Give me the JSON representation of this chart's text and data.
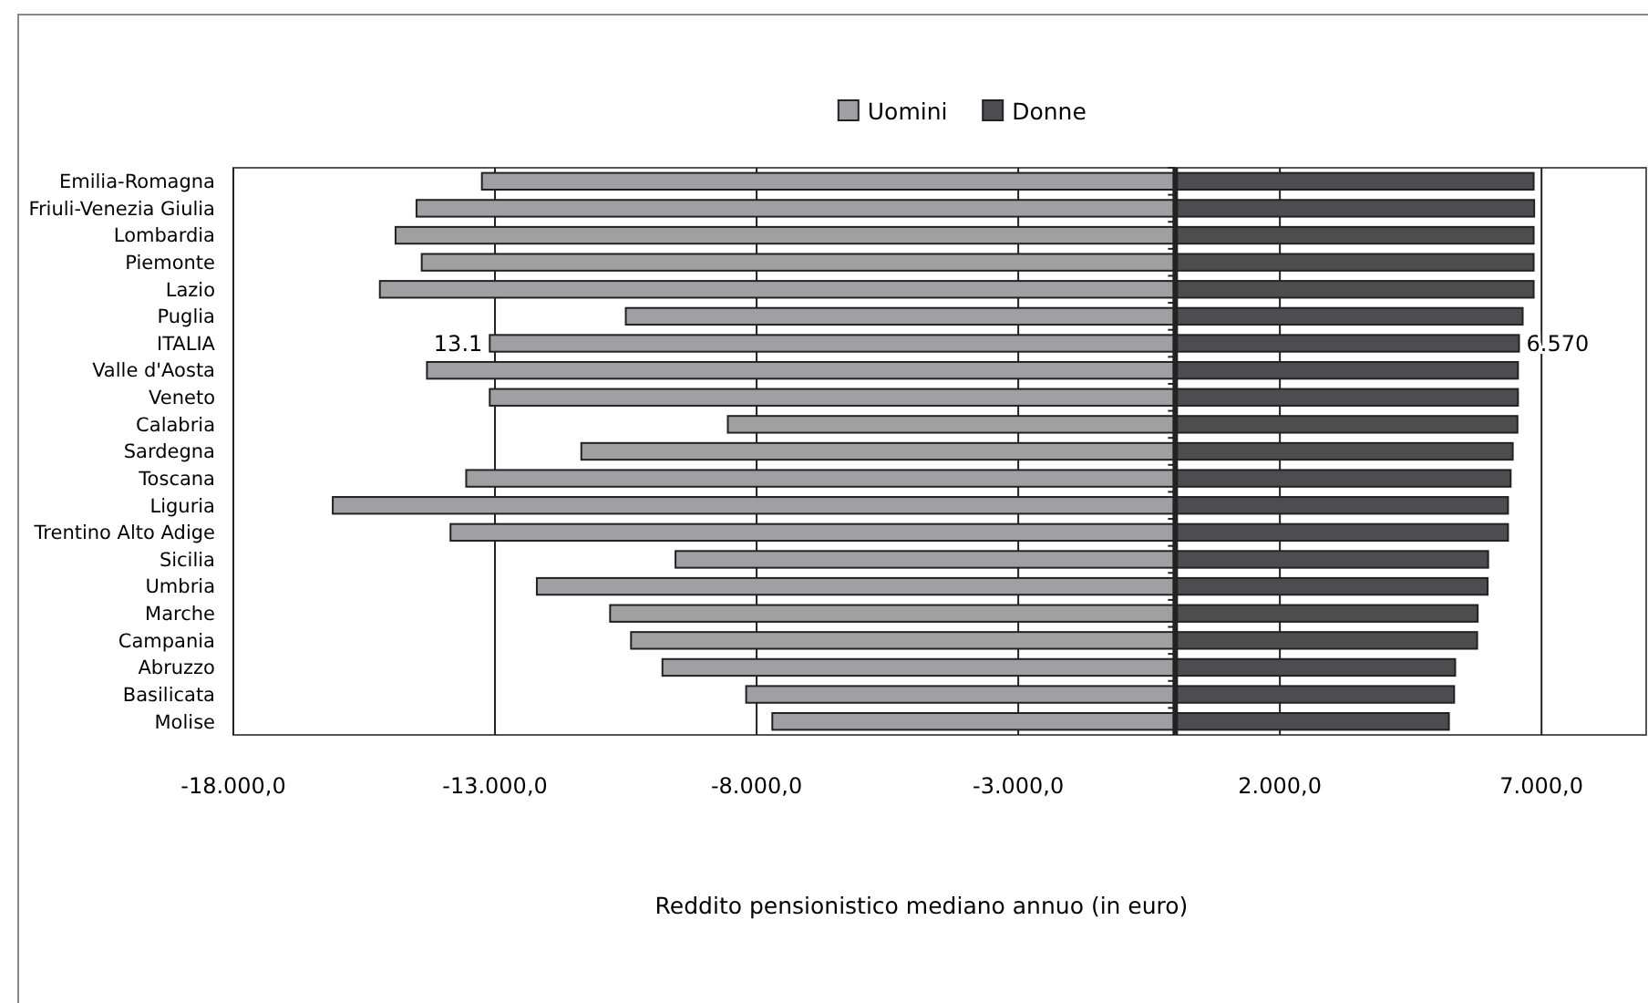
{
  "chart_data": {
    "type": "bar",
    "orientation": "horizontal",
    "xlabel": "Reddito pensionistico mediano annuo (in euro)",
    "categories": [
      "Emilia-Romagna",
      "Friuli-Venezia Giulia",
      "Lombardia",
      "Piemonte",
      "Lazio",
      "Puglia",
      "ITALIA",
      "Valle d'Aosta",
      "Veneto",
      "Calabria",
      "Sardegna",
      "Toscana",
      "Liguria",
      "Trentino Alto Adige",
      "Sicilia",
      "Umbria",
      "Marche",
      "Campania",
      "Abruzzo",
      "Basilicata",
      "Molise"
    ],
    "series": [
      {
        "name": "Uomini",
        "color": "#a0a0a2",
        "values": [
          -13250,
          -14500,
          -14900,
          -14400,
          -15200,
          -10500,
          -13100,
          -14300,
          -13100,
          -8550,
          -11350,
          -13550,
          -16100,
          -13850,
          -9550,
          -12200,
          -10800,
          -10400,
          -9800,
          -8200,
          -7700
        ]
      },
      {
        "name": "Donne",
        "color": "#4d4d4f",
        "values": [
          6850,
          6860,
          6850,
          6850,
          6850,
          6640,
          6570,
          6550,
          6550,
          6540,
          6450,
          6410,
          6360,
          6360,
          5980,
          5970,
          5780,
          5770,
          5350,
          5330,
          5230
        ]
      }
    ],
    "xlim": [
      -18000,
      9000
    ],
    "xticks": [
      {
        "value": -18000,
        "label": "-18.000,0"
      },
      {
        "value": -13000,
        "label": "-13.000,0"
      },
      {
        "value": -8000,
        "label": "-8.000,0"
      },
      {
        "value": -3000,
        "label": "-3.000,0"
      },
      {
        "value": 2000,
        "label": "2.000,0"
      },
      {
        "value": 7000,
        "label": "7.000,0"
      }
    ],
    "annotations": [
      {
        "text": "13.1",
        "x": -13100,
        "y": "ITALIA"
      },
      {
        "text": "6.570",
        "x": 6570,
        "y": "ITALIA"
      }
    ],
    "stacked": true,
    "grid": "x",
    "legend": "top"
  }
}
